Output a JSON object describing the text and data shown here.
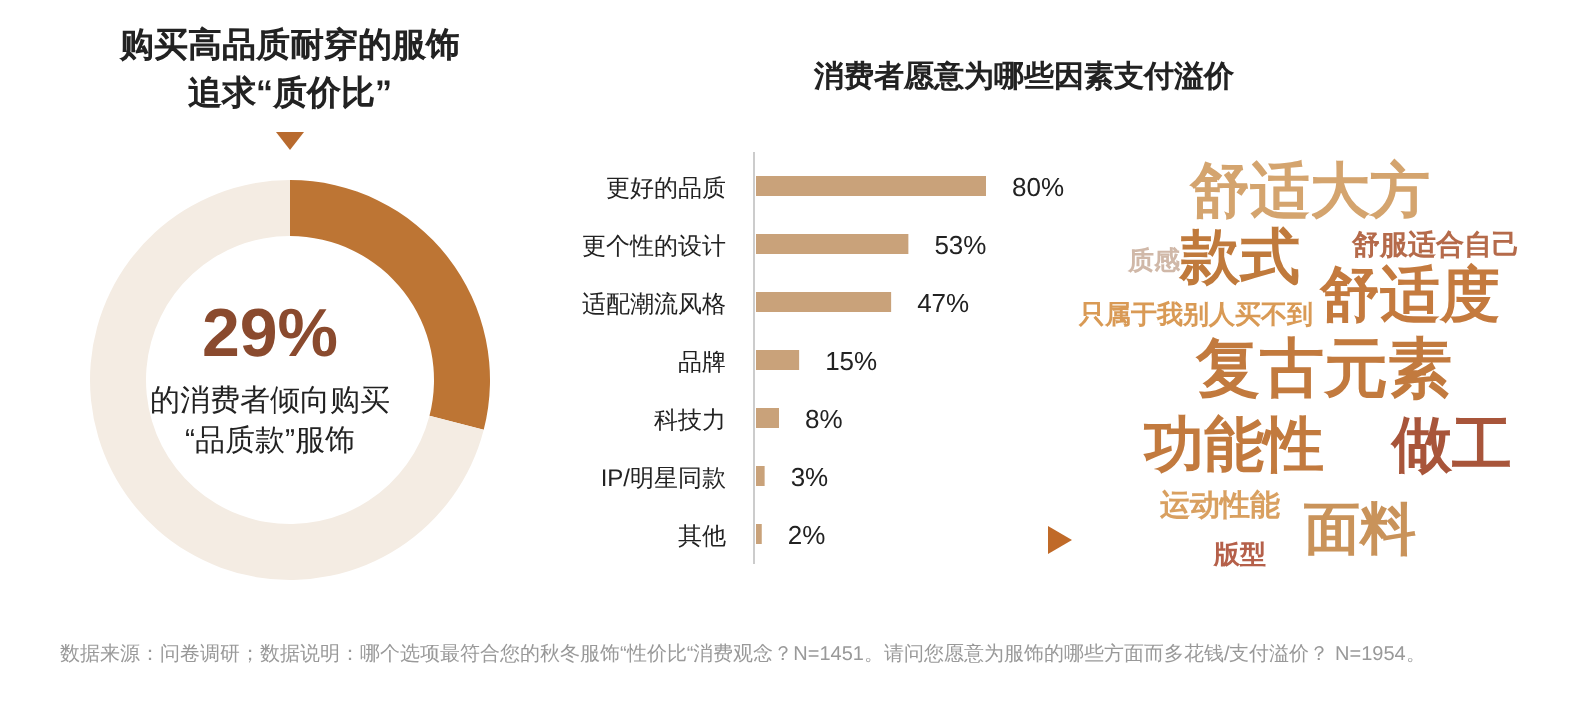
{
  "chart_data": [
    {
      "type": "donut",
      "title": "购买高品质耐穿的服饰",
      "subtitle": "追求“质价比”",
      "categories": [
        null,
        null
      ],
      "values": [
        29,
        71
      ],
      "colors": [
        "#bd7534",
        "#f4ece3"
      ],
      "annotations": [
        "29%",
        "的消费者倾向购买",
        "“品质款”服饰"
      ]
    },
    {
      "type": "bar",
      "orientation": "horizontal",
      "title": "消费者愿意为哪些因素支付溢价",
      "categories": [
        "更好的品质",
        "更个性的设计",
        "适配潮流风格",
        "品牌",
        "科技力",
        "IP/明星同款",
        "其他"
      ],
      "values": [
        80,
        53,
        47,
        15,
        8,
        3,
        2
      ],
      "colors": [
        "#c9a27a",
        "#c9a27a",
        "#c9a27a",
        "#c9a27a",
        "#c9a27a",
        "#c9a27a",
        "#c9a27a"
      ],
      "value_labels": [
        "80%",
        "53%",
        "47%",
        "15%",
        "8%",
        "3%",
        "2%"
      ],
      "annotations": [
        "数据来源：问卷调研；数据说明：哪个选项最符合您的秋冬服饰“性价比“消费观念？N=1451。请问您愿意为服饰的哪些方面而多花钱/支付溢价？ N=1954。"
      ]
    },
    {
      "type": "other",
      "annotations": [
        "舒适大方",
        "款式",
        "舒服适合自己",
        "质感",
        "舒适度",
        "只属于我别人买不到",
        "复古元素",
        "功能性",
        "做工",
        "运动性能",
        "面料",
        "版型"
      ],
      "colors": [
        "#d4a46e",
        "#c07a3c",
        "#b56a4a",
        "#d0b8a8",
        "#c47a3e",
        "#d99a55",
        "#c27a3e",
        "#c27a3e",
        "#a8553a",
        "#d9a060",
        "#c9935a",
        "#b5604a"
      ]
    }
  ]
}
